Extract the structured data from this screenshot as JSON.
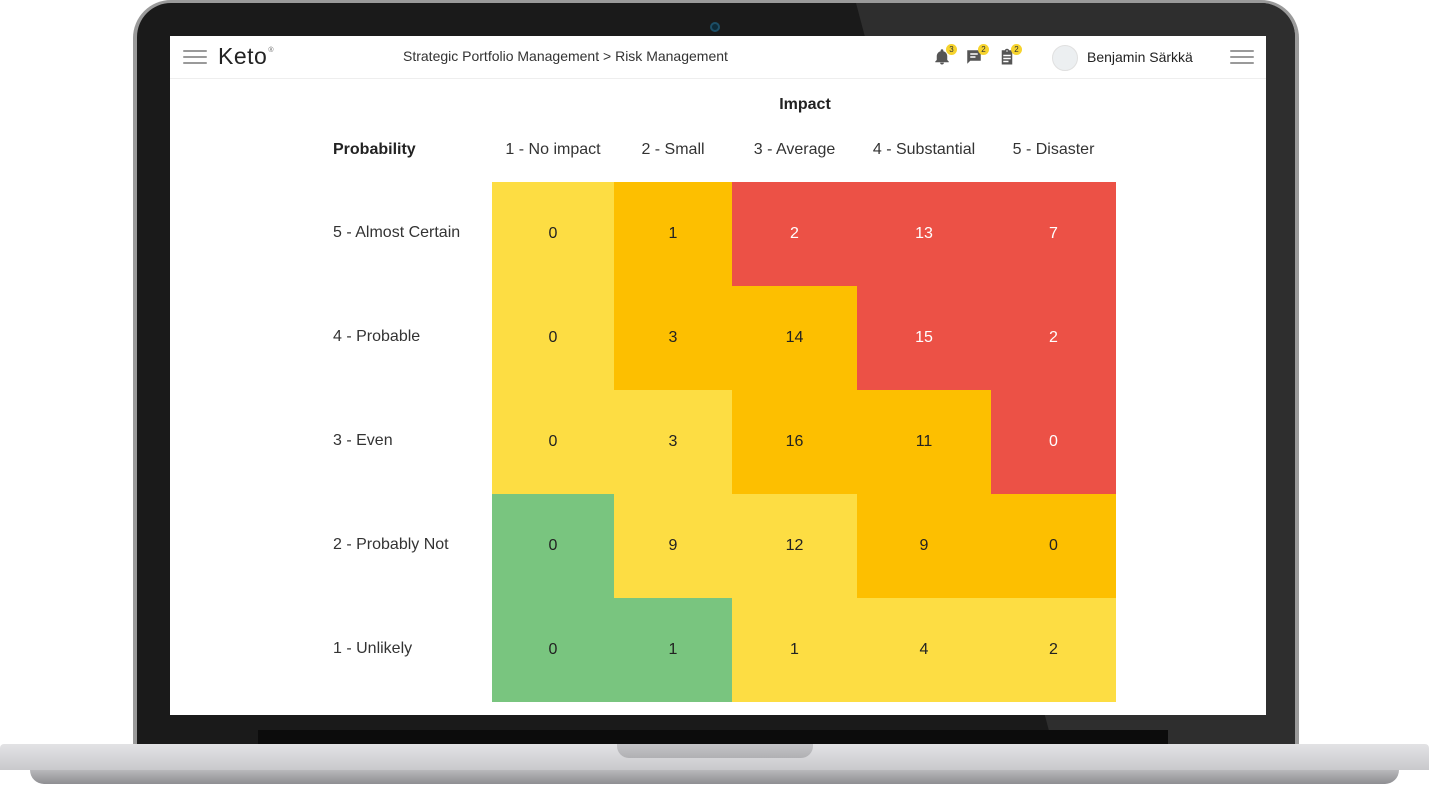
{
  "app": {
    "logo": "Keto",
    "logo_mark": "®",
    "breadcrumb": {
      "parent": "Strategic Portfolio Management",
      "separator": ">",
      "current": "Risk Management"
    },
    "notifications": {
      "icon": "bell-icon",
      "count": "3"
    },
    "messages": {
      "icon": "chat-icon",
      "count": "2"
    },
    "tasks": {
      "icon": "clipboard-icon",
      "count": "2"
    },
    "user": {
      "name": "Benjamin Särkkä"
    }
  },
  "matrix": {
    "impact_label": "Impact",
    "probability_label": "Probability",
    "columns": [
      "1 - No impact",
      "2 - Small",
      "3 - Average",
      "4 - Substantial",
      "5 - Disaster"
    ],
    "rows": [
      "5 - Almost Certain",
      "4 - Probable",
      "3 - Even",
      "2 - Probably Not",
      "1 - Unlikely"
    ],
    "values": [
      [
        "0",
        "1",
        "2",
        "13",
        "7"
      ],
      [
        "0",
        "3",
        "14",
        "15",
        "2"
      ],
      [
        "0",
        "3",
        "16",
        "11",
        "0"
      ],
      [
        "0",
        "9",
        "12",
        "9",
        "0"
      ],
      [
        "0",
        "1",
        "1",
        "4",
        "2"
      ]
    ],
    "levels": [
      [
        "medium",
        "high",
        "critical",
        "critical",
        "critical"
      ],
      [
        "medium",
        "high",
        "high",
        "critical",
        "critical"
      ],
      [
        "medium",
        "medium",
        "high",
        "high",
        "critical"
      ],
      [
        "low",
        "medium",
        "medium",
        "high",
        "high"
      ],
      [
        "low",
        "low",
        "medium",
        "medium",
        "medium"
      ]
    ],
    "level_colors": {
      "low": "#79c57f",
      "medium": "#fddd43",
      "high": "#fdbf00",
      "critical": "#ec5146"
    },
    "text_colors": {
      "low": "#222222",
      "medium": "#222222",
      "high": "#222222",
      "critical": "#ffffff"
    }
  }
}
